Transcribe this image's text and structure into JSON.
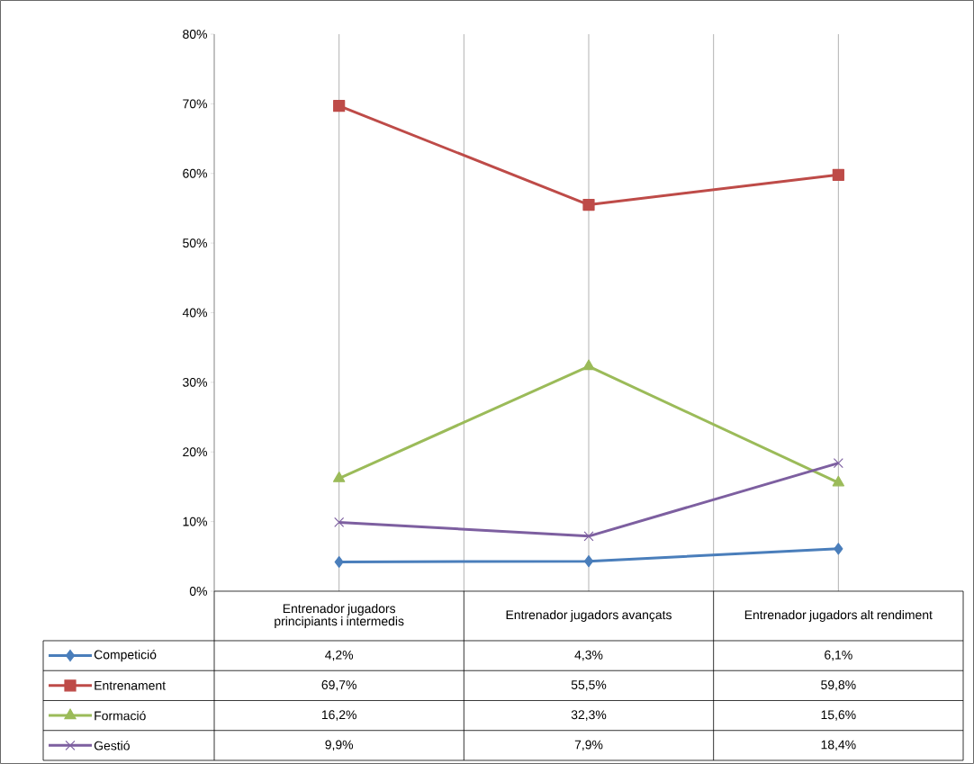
{
  "chart_data": {
    "type": "line",
    "categories": [
      "Entrenador jugadors principiants i intermedis",
      "Entrenador jugadors avançats",
      "Entrenador jugadors alt rendiment"
    ],
    "ylim": [
      0,
      80
    ],
    "yticks": [
      {
        "value": 0,
        "label": "0%"
      },
      {
        "value": 10,
        "label": "10%"
      },
      {
        "value": 20,
        "label": "20%"
      },
      {
        "value": 30,
        "label": "30%"
      },
      {
        "value": 40,
        "label": "40%"
      },
      {
        "value": 50,
        "label": "50%"
      },
      {
        "value": 60,
        "label": "60%"
      },
      {
        "value": 70,
        "label": "70%"
      },
      {
        "value": 80,
        "label": "80%"
      }
    ],
    "grid": "x",
    "legend": "bottom",
    "line_style": "solid",
    "series": [
      {
        "name": "Competició",
        "color": "#4a7ebb",
        "marker": "diamond",
        "values": [
          4.2,
          4.3,
          6.1
        ],
        "value_labels": [
          "4,2%",
          "4,3%",
          "6,1%"
        ]
      },
      {
        "name": "Entrenament",
        "color": "#be4b48",
        "marker": "square",
        "values": [
          69.7,
          55.5,
          59.8
        ],
        "value_labels": [
          "69,7%",
          "55,5%",
          "59,8%"
        ]
      },
      {
        "name": "Formació",
        "color": "#9bbb59",
        "marker": "triangle",
        "values": [
          16.2,
          32.3,
          15.6
        ],
        "value_labels": [
          "16,2%",
          "32,3%",
          "15,6%"
        ]
      },
      {
        "name": "Gestió",
        "color": "#7d5fa0",
        "marker": "cross",
        "values": [
          9.9,
          7.9,
          18.4
        ],
        "value_labels": [
          "9,9%",
          "7,9%",
          "18,4%"
        ]
      }
    ]
  }
}
